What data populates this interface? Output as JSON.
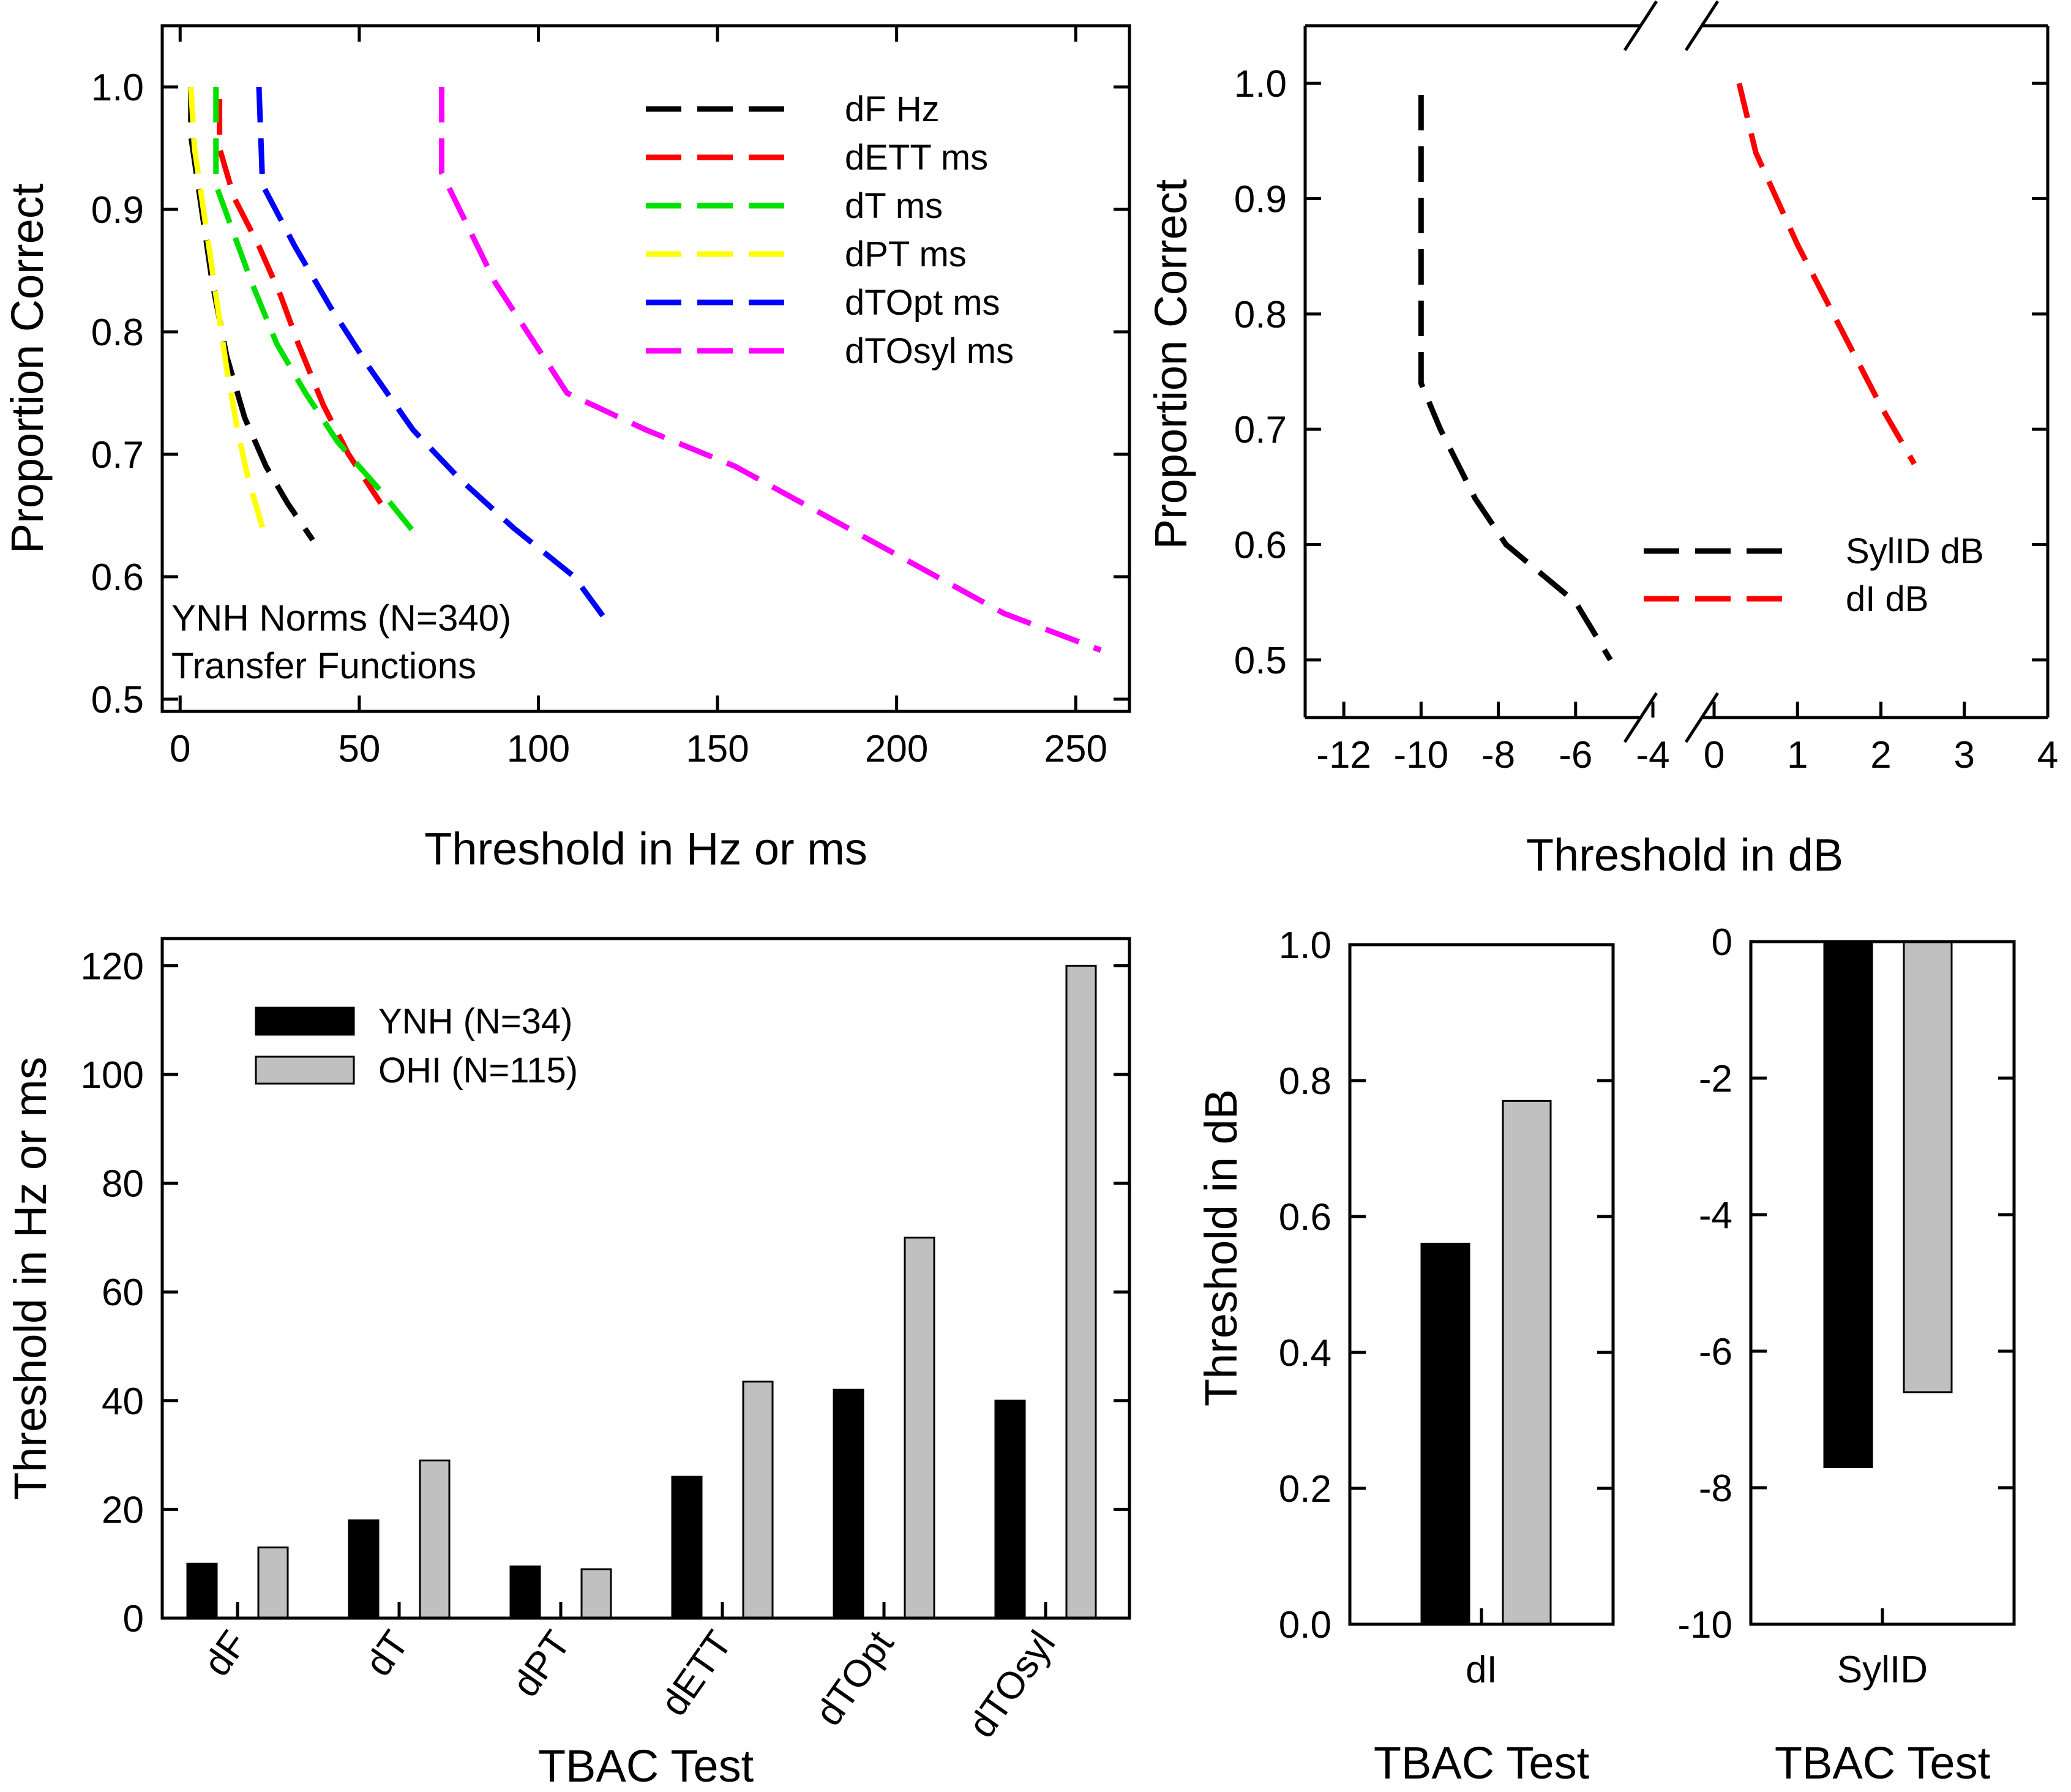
{
  "chart_data": [
    {
      "id": "tl",
      "type": "line",
      "xlabel": "Threshold in Hz or ms",
      "ylabel": "Proportion Correct",
      "xlim": [
        -5,
        265
      ],
      "ylim": [
        0.49,
        1.05
      ],
      "xticks": [
        0,
        50,
        100,
        150,
        200,
        250
      ],
      "yticks": [
        0.5,
        0.6,
        0.7,
        0.8,
        0.9,
        1.0
      ],
      "annotations": [
        "YNH Norms (N=340)",
        "Transfer Functions"
      ],
      "legend_position": "top-right",
      "series": [
        {
          "name": "dF Hz",
          "color": "#000000",
          "points": [
            [
              3,
              1.0
            ],
            [
              3,
              0.96
            ],
            [
              6,
              0.9
            ],
            [
              9,
              0.84
            ],
            [
              13,
              0.78
            ],
            [
              18,
              0.73
            ],
            [
              24,
              0.69
            ],
            [
              30,
              0.66
            ],
            [
              37,
              0.63
            ]
          ]
        },
        {
          "name": "dETT ms",
          "color": "#ff0000",
          "points": [
            [
              11,
              0.99
            ],
            [
              11,
              0.95
            ],
            [
              15,
              0.91
            ],
            [
              22,
              0.87
            ],
            [
              28,
              0.83
            ],
            [
              33,
              0.79
            ],
            [
              40,
              0.74
            ],
            [
              47,
              0.7
            ],
            [
              56,
              0.66
            ]
          ]
        },
        {
          "name": "dT ms",
          "color": "#00e000",
          "points": [
            [
              10,
              1.0
            ],
            [
              10,
              0.92
            ],
            [
              15,
              0.88
            ],
            [
              20,
              0.84
            ],
            [
              27,
              0.79
            ],
            [
              35,
              0.75
            ],
            [
              44,
              0.71
            ],
            [
              56,
              0.67
            ],
            [
              67,
              0.63
            ]
          ]
        },
        {
          "name": "dPT ms",
          "color": "#ffff00",
          "points": [
            [
              3,
              1.0
            ],
            [
              4,
              0.95
            ],
            [
              7,
              0.89
            ],
            [
              10,
              0.83
            ],
            [
              13,
              0.77
            ],
            [
              16,
              0.72
            ],
            [
              19,
              0.68
            ],
            [
              23,
              0.64
            ]
          ]
        },
        {
          "name": "dTOpt ms",
          "color": "#0000ff",
          "points": [
            [
              22,
              1.0
            ],
            [
              23,
              0.92
            ],
            [
              32,
              0.87
            ],
            [
              42,
              0.82
            ],
            [
              53,
              0.77
            ],
            [
              65,
              0.72
            ],
            [
              78,
              0.68
            ],
            [
              93,
              0.64
            ],
            [
              110,
              0.6
            ],
            [
              120,
              0.56
            ]
          ]
        },
        {
          "name": "dTOsyl ms",
          "color": "#ff00ff",
          "points": [
            [
              73,
              1.0
            ],
            [
              73,
              0.93
            ],
            [
              88,
              0.84
            ],
            [
              108,
              0.75
            ],
            [
              130,
              0.72
            ],
            [
              155,
              0.69
            ],
            [
              180,
              0.65
            ],
            [
              205,
              0.61
            ],
            [
              230,
              0.57
            ],
            [
              257,
              0.54
            ]
          ]
        }
      ]
    },
    {
      "id": "tr",
      "type": "line",
      "xlabel": "Threshold in dB",
      "ylabel": "Proportion Correct",
      "ylim": [
        0.45,
        1.05
      ],
      "yticks": [
        0.5,
        0.6,
        0.7,
        0.8,
        0.9,
        1.0
      ],
      "broken_x_axis": true,
      "xlim_left": [
        -13,
        -4
      ],
      "xlim_right": [
        0,
        4
      ],
      "xticks_left": [
        -12,
        -10,
        -8,
        -6,
        -4
      ],
      "xticks_right": [
        0,
        1,
        2,
        3,
        4
      ],
      "legend_position": "bottom-right",
      "series": [
        {
          "name": "SylID dB",
          "color": "#000000",
          "segment": "left",
          "points": [
            [
              -10,
              0.99
            ],
            [
              -10,
              0.74
            ],
            [
              -9.5,
              0.7
            ],
            [
              -8.6,
              0.64
            ],
            [
              -7.8,
              0.6
            ],
            [
              -6,
              0.55
            ],
            [
              -5.1,
              0.5
            ]
          ]
        },
        {
          "name": "dI dB",
          "color": "#ff0000",
          "segment": "right",
          "points": [
            [
              0.3,
              1.0
            ],
            [
              0.5,
              0.94
            ],
            [
              1.0,
              0.86
            ],
            [
              1.5,
              0.79
            ],
            [
              2.0,
              0.72
            ],
            [
              2.4,
              0.67
            ]
          ]
        }
      ]
    },
    {
      "id": "bl",
      "type": "bar",
      "xlabel": "TBAC Test",
      "ylabel": "Threshold in Hz or ms",
      "ylim": [
        0,
        125
      ],
      "yticks": [
        0,
        20,
        40,
        60,
        80,
        100,
        120
      ],
      "categories": [
        "dF",
        "dT",
        "dPT",
        "dETT",
        "dTOpt",
        "dTOsyl"
      ],
      "legend_position": "top-left",
      "series": [
        {
          "name": "YNH (N=34)",
          "color": "#000000",
          "values": [
            10,
            18,
            9.5,
            26,
            42,
            40
          ]
        },
        {
          "name": "OHI (N=115)",
          "color": "#c0c0c0",
          "values": [
            13,
            29,
            9,
            43.5,
            70,
            120
          ]
        }
      ]
    },
    {
      "id": "bm",
      "type": "bar",
      "xlabel": "TBAC Test",
      "ylabel": "Threshold in dB",
      "ylim": [
        0,
        1.0
      ],
      "yticks": [
        "0.0",
        "0.2",
        "0.4",
        "0.6",
        "0.8",
        "1.0"
      ],
      "categories": [
        "dI"
      ],
      "series": [
        {
          "name": "YNH (N=34)",
          "color": "#000000",
          "values": [
            0.56
          ]
        },
        {
          "name": "OHI (N=115)",
          "color": "#c0c0c0",
          "values": [
            0.77
          ]
        }
      ]
    },
    {
      "id": "br",
      "type": "bar",
      "xlabel": "TBAC Test",
      "ylabel": "",
      "ylim": [
        -10,
        0
      ],
      "yticks": [
        -10,
        -8,
        -6,
        -4,
        -2,
        0
      ],
      "categories": [
        "SylID"
      ],
      "series": [
        {
          "name": "YNH (N=34)",
          "color": "#000000",
          "values": [
            -7.7
          ]
        },
        {
          "name": "OHI (N=115)",
          "color": "#c0c0c0",
          "values": [
            -6.6
          ]
        }
      ]
    }
  ]
}
